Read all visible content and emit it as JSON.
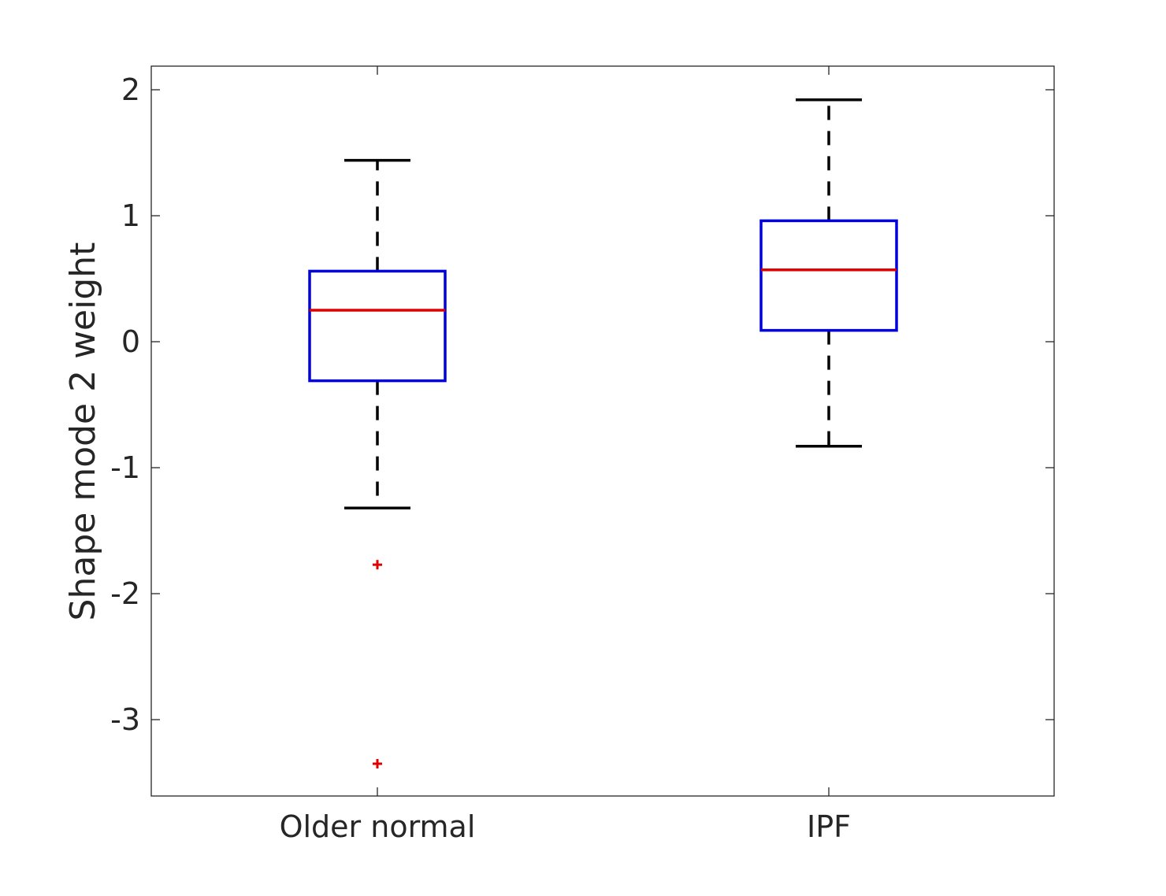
{
  "chart_data": {
    "type": "box",
    "title": "",
    "xlabel": "",
    "ylabel": "Shape mode 2 weight",
    "ylim": [
      -3.6,
      2.2
    ],
    "yticks": [
      2,
      1,
      0,
      -1,
      -2,
      -3
    ],
    "ytick_labels": [
      "2",
      "1",
      "0",
      "-1",
      "-2",
      "-3"
    ],
    "categories": [
      "Older normal",
      "IPF"
    ],
    "boxes": [
      {
        "category": "Older normal",
        "whisker_low": -1.32,
        "q1": -0.31,
        "median": 0.25,
        "q3": 0.56,
        "whisker_high": 1.44,
        "outliers": [
          -1.77,
          -3.35
        ]
      },
      {
        "category": "IPF",
        "whisker_low": -0.83,
        "q1": 0.09,
        "median": 0.57,
        "q3": 0.96,
        "whisker_high": 1.92,
        "outliers": []
      }
    ],
    "grid": false,
    "colors": {
      "box": "#0000dd",
      "median": "#e00000",
      "whisker": "#000000",
      "outlier": "#e00000",
      "axis": "#262626"
    }
  }
}
